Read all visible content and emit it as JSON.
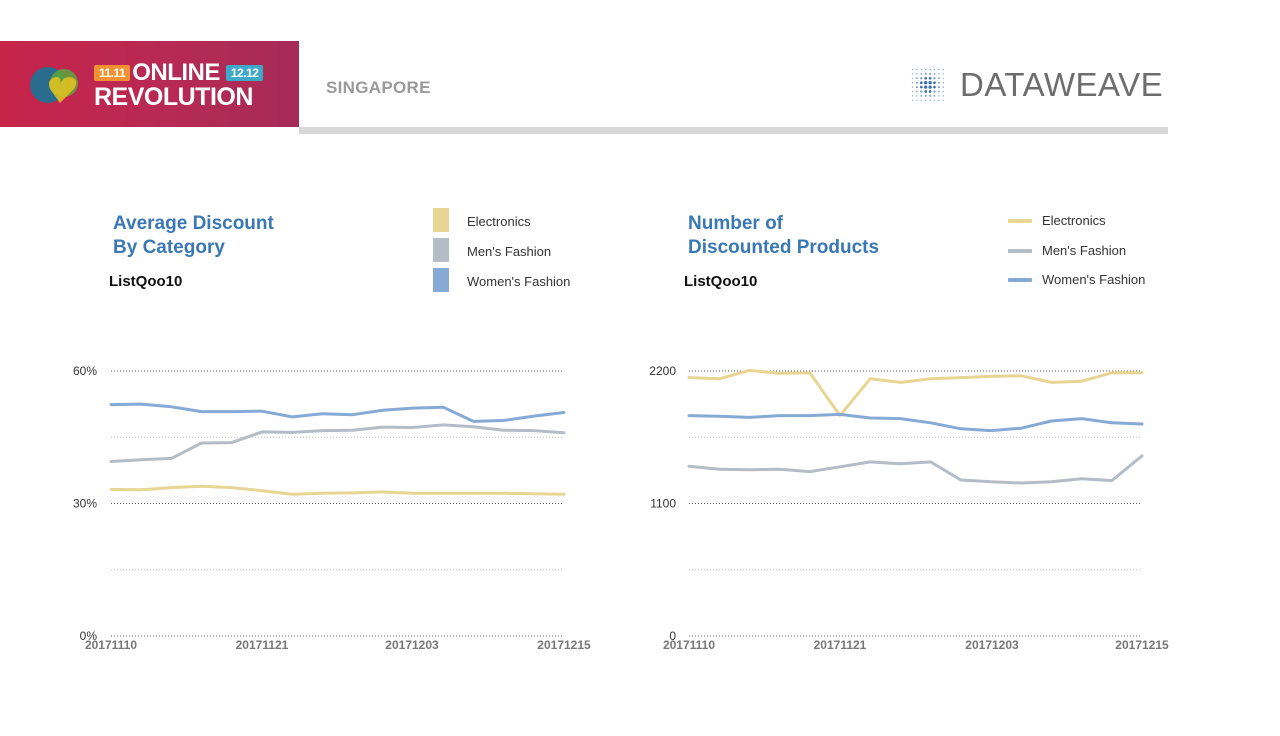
{
  "header": {
    "banner": {
      "tag_left": "11.11",
      "line1": "ONLINE",
      "tag_right": "12.12",
      "line2": "REVOLUTION"
    },
    "region": "SINGAPORE",
    "brand": "DATAWEAVE"
  },
  "colors": {
    "electronics": "#e8d594",
    "mens_fashion": "#b4bcc8",
    "womens_fashion": "#86aad6",
    "title_blue": "#3a78b5"
  },
  "charts": [
    {
      "title_line1": "Average Discount",
      "title_line2": "By Category",
      "subtitle": "ListQoo10",
      "legend_style": "box",
      "legend": [
        "Electronics",
        "Men's Fashion",
        "Women's Fashion"
      ]
    },
    {
      "title_line1": "Number of",
      "title_line2": "Discounted Products",
      "subtitle": "ListQoo10",
      "legend_style": "line",
      "legend": [
        "Electronics",
        "Men's Fashion",
        "Women's Fashion"
      ]
    }
  ],
  "chart_data": [
    {
      "type": "line",
      "x_tick_labels": [
        "20171110",
        "20171121",
        "20171203",
        "20171215"
      ],
      "y_tick_labels": [
        "60%",
        "30%",
        "0%"
      ],
      "y_ticks": [
        60,
        30,
        0
      ],
      "ylim": [
        0,
        60
      ],
      "grid": true,
      "x_points": 16,
      "series": [
        {
          "name": "Electronics",
          "color": "#e8d594",
          "values": [
            33.2,
            33.1,
            33.6,
            33.9,
            33.6,
            32.9,
            32.1,
            32.3,
            32.4,
            32.6,
            32.3,
            32.3,
            32.3,
            32.3,
            32.2,
            32.1
          ]
        },
        {
          "name": "Men's Fashion",
          "color": "#b4bcc8",
          "values": [
            39.5,
            39.9,
            40.2,
            43.7,
            43.8,
            46.2,
            46.1,
            46.5,
            46.6,
            47.3,
            47.2,
            47.8,
            47.4,
            46.6,
            46.5,
            46.0
          ]
        },
        {
          "name": "Women's Fashion",
          "color": "#86aad6",
          "values": [
            52.4,
            52.5,
            51.9,
            50.8,
            50.8,
            50.9,
            49.6,
            50.3,
            50.1,
            51.1,
            51.6,
            51.8,
            48.6,
            48.8,
            49.8,
            50.6
          ]
        }
      ]
    },
    {
      "type": "line",
      "x_tick_labels": [
        "20171110",
        "20171121",
        "20171203",
        "20171215"
      ],
      "y_tick_labels": [
        "2200",
        "1100",
        "0"
      ],
      "y_ticks": [
        2200,
        1100,
        0
      ],
      "ylim": [
        0,
        2200
      ],
      "grid": true,
      "x_points": 16,
      "series": [
        {
          "name": "Electronics",
          "color": "#e8d594",
          "values": [
            2145,
            2135,
            2205,
            2180,
            2185,
            1830,
            2135,
            2105,
            2135,
            2145,
            2155,
            2160,
            2105,
            2115,
            2185,
            2185
          ]
        },
        {
          "name": "Men's Fashion",
          "color": "#b4bcc8",
          "values": [
            1410,
            1385,
            1380,
            1385,
            1365,
            1405,
            1445,
            1430,
            1445,
            1295,
            1280,
            1270,
            1280,
            1305,
            1290,
            1495
          ]
        },
        {
          "name": "Women's Fashion",
          "color": "#86aad6",
          "values": [
            1830,
            1825,
            1815,
            1830,
            1830,
            1840,
            1810,
            1805,
            1770,
            1720,
            1705,
            1725,
            1785,
            1805,
            1770,
            1760
          ]
        }
      ]
    }
  ]
}
